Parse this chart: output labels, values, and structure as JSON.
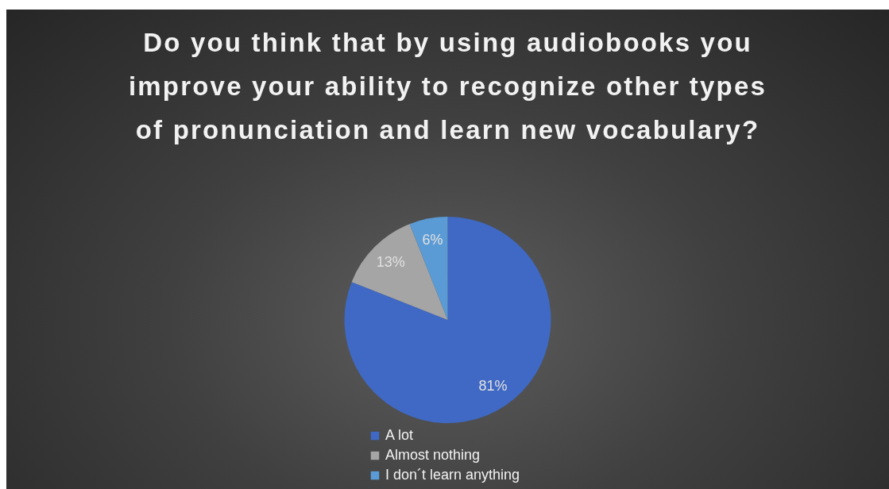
{
  "chart_data": {
    "type": "pie",
    "title": "Do you think that by using audiobooks you improve your ability to recognize other types of pronunciation and learn new vocabulary?",
    "categories": [
      "A lot",
      "Almost nothing",
      "I don´t learn anything"
    ],
    "values": [
      81,
      13,
      6
    ],
    "colors": [
      "#3f69c4",
      "#a5a5a5",
      "#5b9bd5"
    ],
    "value_labels": [
      "81%",
      "13%",
      "6%"
    ],
    "legend": "bottom"
  }
}
